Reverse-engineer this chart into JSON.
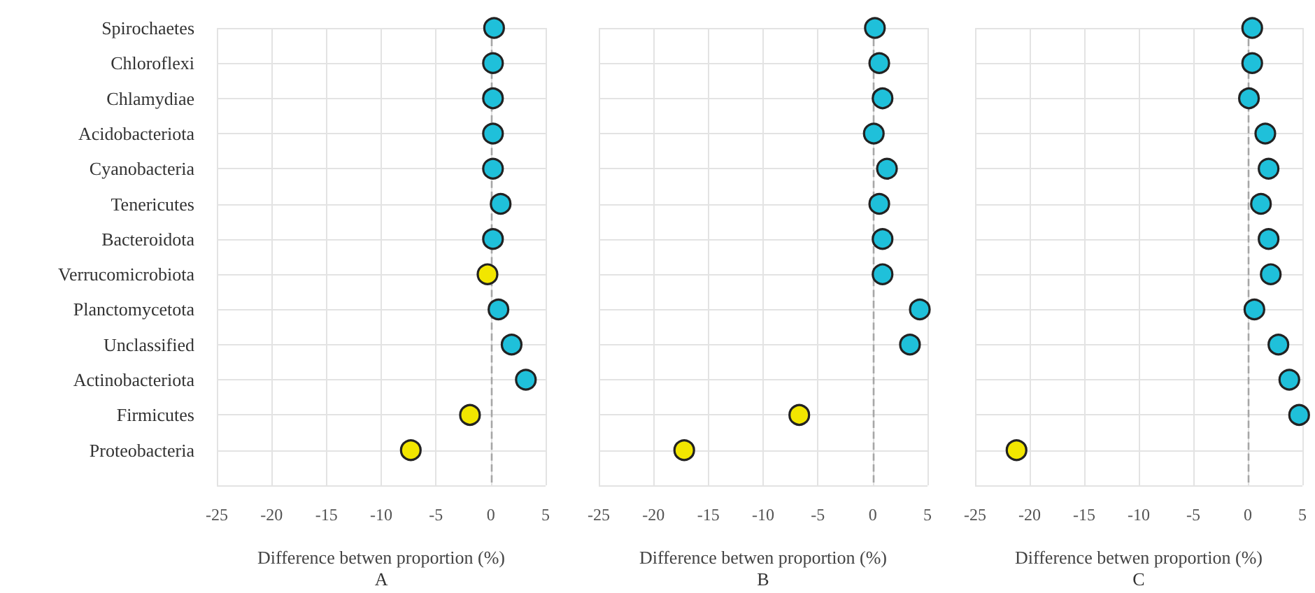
{
  "chart_data": [
    {
      "type": "scatter",
      "orientation": "horizontal",
      "categories": [
        "Spirochaetes",
        "Chloroflexi",
        "Chlamydiae",
        "Acidobacteriota",
        "Cyanobacteria",
        "Tenericutes",
        "Bacteroidota",
        "Verrucomicrobiota",
        "Planctomycetota",
        "Unclassified",
        "Actinobacteriota",
        "Firmicutes",
        "Proteobacteria"
      ],
      "series": [
        {
          "values": [
            0.3,
            0.2,
            0.2,
            0.2,
            0.2,
            0.9,
            0.2,
            -0.3,
            0.7,
            1.9,
            3.2,
            -1.9,
            -7.3
          ],
          "colors": [
            "#1fc0da",
            "#1fc0da",
            "#1fc0da",
            "#1fc0da",
            "#1fc0da",
            "#1fc0da",
            "#1fc0da",
            "#f2e600",
            "#1fc0da",
            "#1fc0da",
            "#1fc0da",
            "#f2e600",
            "#f2e600"
          ]
        }
      ],
      "xlabel": "Difference betwen proportion (%)",
      "annotations": [
        "A"
      ],
      "xlim": [
        -25,
        5
      ],
      "xticks": [
        -25,
        -20,
        -15,
        -10,
        -5,
        0,
        5
      ],
      "grid": true,
      "marker": "circle",
      "ref_lines": [
        {
          "axis": "x",
          "value": 0,
          "line_style": "dashed",
          "color": "#a6a6a6"
        }
      ]
    },
    {
      "type": "scatter",
      "orientation": "horizontal",
      "categories": [
        null,
        null,
        null,
        null,
        null,
        null,
        null,
        null,
        null,
        null,
        null,
        null,
        null
      ],
      "series": [
        {
          "values": [
            0.2,
            0.6,
            0.9,
            0.1,
            1.3,
            0.6,
            0.9,
            0.9,
            4.3,
            3.4,
            null,
            -6.7,
            -17.2
          ],
          "colors": [
            "#1fc0da",
            "#1fc0da",
            "#1fc0da",
            "#1fc0da",
            "#1fc0da",
            "#1fc0da",
            "#1fc0da",
            "#1fc0da",
            "#1fc0da",
            "#1fc0da",
            null,
            "#f2e600",
            "#f2e600"
          ]
        }
      ],
      "xlabel": "Difference betwen proportion (%)",
      "annotations": [
        "B"
      ],
      "xlim": [
        -25,
        5
      ],
      "xticks": [
        -25,
        -20,
        -15,
        -10,
        -5,
        0,
        5
      ],
      "grid": true,
      "marker": "circle",
      "tick_labels": "x",
      "ref_lines": [
        {
          "axis": "x",
          "value": 0,
          "line_style": "dashed",
          "color": "#a6a6a6"
        }
      ]
    },
    {
      "type": "scatter",
      "orientation": "horizontal",
      "categories": [
        null,
        null,
        null,
        null,
        null,
        null,
        null,
        null,
        null,
        null,
        null,
        null,
        null
      ],
      "series": [
        {
          "values": [
            0.4,
            0.4,
            0.1,
            1.6,
            1.9,
            1.2,
            1.9,
            2.1,
            0.6,
            2.8,
            3.8,
            4.7,
            -21.2
          ],
          "colors": [
            "#1fc0da",
            "#1fc0da",
            "#1fc0da",
            "#1fc0da",
            "#1fc0da",
            "#1fc0da",
            "#1fc0da",
            "#1fc0da",
            "#1fc0da",
            "#1fc0da",
            "#1fc0da",
            "#1fc0da",
            "#f2e600"
          ]
        }
      ],
      "xlabel": "Difference betwen proportion (%)",
      "annotations": [
        "C"
      ],
      "xlim": [
        -25,
        5
      ],
      "xticks": [
        -25,
        -20,
        -15,
        -10,
        -5,
        0,
        5
      ],
      "grid": true,
      "marker": "circle",
      "tick_labels": "x",
      "ref_lines": [
        {
          "axis": "x",
          "value": 0,
          "line_style": "dashed",
          "color": "#a6a6a6"
        }
      ]
    }
  ]
}
